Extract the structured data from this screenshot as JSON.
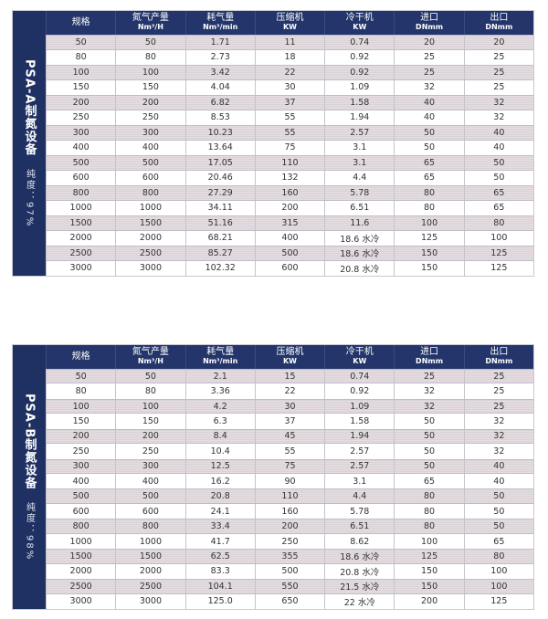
{
  "headers": [
    {
      "label": "规格",
      "unit": ""
    },
    {
      "label": "氮气产量",
      "unit": "Nm³/H"
    },
    {
      "label": "耗气量",
      "unit": "Nm³/min"
    },
    {
      "label": "压缩机",
      "unit": "KW"
    },
    {
      "label": "冷干机",
      "unit": "KW"
    },
    {
      "label": "进口",
      "unit": "DNmm"
    },
    {
      "label": "出口",
      "unit": "DNmm"
    }
  ],
  "tables": [
    {
      "title": "PSA-A制氮设备",
      "purity": "纯度：97%",
      "rows": [
        [
          "50",
          "50",
          "1.71",
          "11",
          "0.74",
          "20",
          "20"
        ],
        [
          "80",
          "80",
          "2.73",
          "18",
          "0.92",
          "25",
          "25"
        ],
        [
          "100",
          "100",
          "3.42",
          "22",
          "0.92",
          "25",
          "25"
        ],
        [
          "150",
          "150",
          "4.04",
          "30",
          "1.09",
          "32",
          "25"
        ],
        [
          "200",
          "200",
          "6.82",
          "37",
          "1.58",
          "40",
          "32"
        ],
        [
          "250",
          "250",
          "8.53",
          "55",
          "1.94",
          "40",
          "32"
        ],
        [
          "300",
          "300",
          "10.23",
          "55",
          "2.57",
          "50",
          "40"
        ],
        [
          "400",
          "400",
          "13.64",
          "75",
          "3.1",
          "50",
          "40"
        ],
        [
          "500",
          "500",
          "17.05",
          "110",
          "3.1",
          "65",
          "50"
        ],
        [
          "600",
          "600",
          "20.46",
          "132",
          "4.4",
          "65",
          "50"
        ],
        [
          "800",
          "800",
          "27.29",
          "160",
          "5.78",
          "80",
          "65"
        ],
        [
          "1000",
          "1000",
          "34.11",
          "200",
          "6.51",
          "80",
          "65"
        ],
        [
          "1500",
          "1500",
          "51.16",
          "315",
          "11.6",
          "100",
          "80"
        ],
        [
          "2000",
          "2000",
          "68.21",
          "400",
          "18.6 水冷",
          "125",
          "100"
        ],
        [
          "2500",
          "2500",
          "85.27",
          "500",
          "18.6 水冷",
          "150",
          "125"
        ],
        [
          "3000",
          "3000",
          "102.32",
          "600",
          "20.8 水冷",
          "150",
          "125"
        ]
      ]
    },
    {
      "title": "PSA-B制氮设备",
      "purity": "纯度：98%",
      "rows": [
        [
          "50",
          "50",
          "2.1",
          "15",
          "0.74",
          "25",
          "25"
        ],
        [
          "80",
          "80",
          "3.36",
          "22",
          "0.92",
          "32",
          "25"
        ],
        [
          "100",
          "100",
          "4.2",
          "30",
          "1.09",
          "32",
          "25"
        ],
        [
          "150",
          "150",
          "6.3",
          "37",
          "1.58",
          "50",
          "32"
        ],
        [
          "200",
          "200",
          "8.4",
          "45",
          "1.94",
          "50",
          "32"
        ],
        [
          "250",
          "250",
          "10.4",
          "55",
          "2.57",
          "50",
          "32"
        ],
        [
          "300",
          "300",
          "12.5",
          "75",
          "2.57",
          "50",
          "40"
        ],
        [
          "400",
          "400",
          "16.2",
          "90",
          "3.1",
          "65",
          "40"
        ],
        [
          "500",
          "500",
          "20.8",
          "110",
          "4.4",
          "80",
          "50"
        ],
        [
          "600",
          "600",
          "24.1",
          "160",
          "5.78",
          "80",
          "50"
        ],
        [
          "800",
          "800",
          "33.4",
          "200",
          "6.51",
          "80",
          "50"
        ],
        [
          "1000",
          "1000",
          "41.7",
          "250",
          "8.62",
          "100",
          "65"
        ],
        [
          "1500",
          "1500",
          "62.5",
          "355",
          "18.6 水冷",
          "125",
          "80"
        ],
        [
          "2000",
          "2000",
          "83.3",
          "500",
          "20.8 水冷",
          "150",
          "100"
        ],
        [
          "2500",
          "2500",
          "104.1",
          "550",
          "21.5 水冷",
          "150",
          "100"
        ],
        [
          "3000",
          "3000",
          "125.0",
          "650",
          "22 水冷",
          "200",
          "125"
        ]
      ]
    }
  ]
}
